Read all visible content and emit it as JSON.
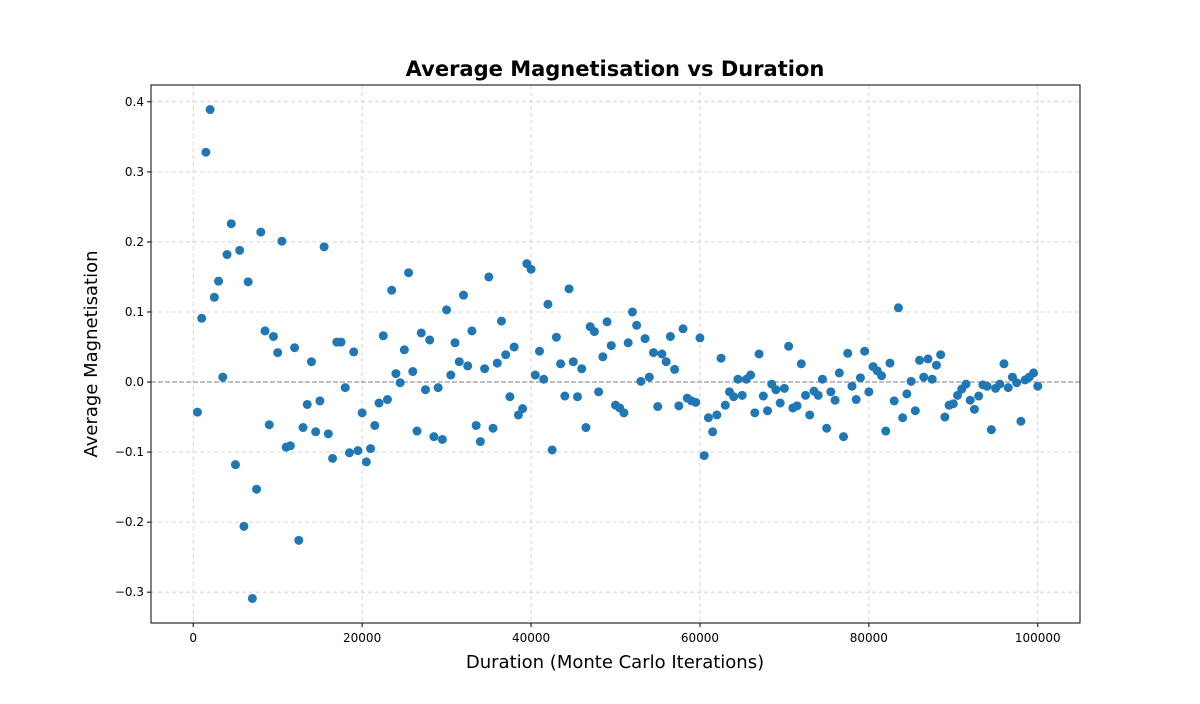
{
  "chart_data": {
    "type": "scatter",
    "title": "Average Magnetisation vs Duration",
    "x_label": "Duration (Monte Carlo Iterations)",
    "y_label": "Average Magnetisation",
    "color": "#1f77b4",
    "grid": true,
    "hlines": [
      0
    ],
    "xlim": [
      -5000,
      105000
    ],
    "ylim": [
      -0.344,
      0.424
    ],
    "xticks": [
      0,
      20000,
      40000,
      60000,
      80000,
      100000
    ],
    "yticks": [
      {
        "value": -0.3,
        "label": "−0.3"
      },
      {
        "value": -0.2,
        "label": "−0.2"
      },
      {
        "value": -0.1,
        "label": "−0.1"
      },
      {
        "value": 0,
        "label": "0.0"
      },
      0.1,
      0.2,
      0.3,
      0.4
    ],
    "x": [
      500,
      1000,
      1500,
      2000,
      2500,
      3000,
      3500,
      4000,
      4500,
      5000,
      5500,
      6000,
      6500,
      7000,
      7500,
      8000,
      8500,
      9000,
      9500,
      10000,
      10500,
      11000,
      11500,
      12000,
      12500,
      13000,
      13500,
      14000,
      14500,
      15000,
      15500,
      16000,
      16500,
      17000,
      17500,
      18000,
      18500,
      19000,
      19500,
      20000,
      20500,
      21000,
      21500,
      22000,
      22500,
      23000,
      23500,
      24000,
      24500,
      25000,
      25500,
      26000,
      26500,
      27000,
      27500,
      28000,
      28500,
      29000,
      29500,
      30000,
      30500,
      31000,
      31500,
      32000,
      32500,
      33000,
      33500,
      34000,
      34500,
      35000,
      35500,
      36000,
      36500,
      37000,
      37500,
      38000,
      38500,
      39000,
      39500,
      40000,
      40500,
      41000,
      41500,
      42000,
      42500,
      43000,
      43500,
      44000,
      44500,
      45000,
      45500,
      46000,
      46500,
      47000,
      47500,
      48000,
      48500,
      49000,
      49500,
      50000,
      50500,
      51000,
      51500,
      52000,
      52500,
      53000,
      53500,
      54000,
      54500,
      55000,
      55500,
      56000,
      56500,
      57000,
      57500,
      58000,
      58500,
      59000,
      59500,
      60000,
      60500,
      61000,
      61500,
      62000,
      62500,
      63000,
      63500,
      64000,
      64500,
      65000,
      65500,
      66000,
      66500,
      67000,
      67500,
      68000,
      68500,
      69000,
      69500,
      70000,
      70500,
      71000,
      71500,
      72000,
      72500,
      73000,
      73500,
      74000,
      74500,
      75000,
      75500,
      76000,
      76500,
      77000,
      77500,
      78000,
      78500,
      79000,
      79500,
      80000,
      80500,
      81000,
      81500,
      82000,
      82500,
      83000,
      83500,
      84000,
      84500,
      85000,
      85500,
      86000,
      86500,
      87000,
      87500,
      88000,
      88500,
      89000,
      89500,
      90000,
      90500,
      91000,
      91500,
      92000,
      92500,
      93000,
      93500,
      94000,
      94500,
      95000,
      95500,
      96000,
      96500,
      97000,
      97500,
      98000,
      98500,
      99000,
      99500,
      100000
    ],
    "values": [
      -0.043,
      0.091,
      0.328,
      0.389,
      0.121,
      0.144,
      0.007,
      0.182,
      0.226,
      -0.118,
      0.188,
      -0.206,
      0.143,
      -0.309,
      -0.153,
      0.214,
      0.073,
      -0.061,
      0.065,
      0.042,
      0.201,
      -0.093,
      -0.091,
      0.049,
      -0.226,
      -0.065,
      -0.032,
      0.029,
      -0.071,
      -0.027,
      0.193,
      -0.074,
      -0.109,
      0.057,
      0.057,
      -0.008,
      -0.101,
      0.043,
      -0.098,
      -0.044,
      -0.114,
      -0.095,
      -0.062,
      -0.03,
      0.066,
      -0.025,
      0.131,
      0.012,
      -0.001,
      0.046,
      0.156,
      0.015,
      -0.07,
      0.07,
      -0.011,
      0.06,
      -0.078,
      -0.008,
      -0.082,
      0.103,
      0.01,
      0.056,
      0.029,
      0.124,
      0.023,
      0.073,
      -0.062,
      -0.085,
      0.019,
      0.15,
      -0.066,
      0.027,
      0.087,
      0.039,
      -0.021,
      0.05,
      -0.047,
      -0.038,
      0.169,
      0.161,
      0.01,
      0.044,
      0.004,
      0.111,
      -0.097,
      0.064,
      0.026,
      -0.02,
      0.133,
      0.029,
      -0.021,
      0.019,
      -0.065,
      0.079,
      0.072,
      -0.014,
      0.036,
      0.086,
      0.052,
      -0.033,
      -0.037,
      -0.044,
      0.056,
      0.1,
      0.081,
      0.001,
      0.062,
      0.007,
      0.042,
      -0.035,
      0.04,
      0.029,
      0.065,
      0.018,
      -0.034,
      0.076,
      -0.023,
      -0.027,
      -0.029,
      0.063,
      -0.105,
      -0.051,
      -0.071,
      -0.047,
      0.034,
      -0.033,
      -0.014,
      -0.021,
      0.004,
      -0.019,
      0.004,
      0.01,
      -0.044,
      0.04,
      -0.02,
      -0.041,
      -0.003,
      -0.011,
      -0.03,
      -0.009,
      0.051,
      -0.037,
      -0.034,
      0.026,
      -0.019,
      -0.047,
      -0.013,
      -0.019,
      0.004,
      -0.066,
      -0.014,
      -0.026,
      0.013,
      -0.078,
      0.041,
      -0.006,
      -0.025,
      0.006,
      0.044,
      -0.014,
      0.022,
      0.016,
      0.009,
      -0.07,
      0.027,
      -0.027,
      0.106,
      -0.051,
      -0.017,
      0.001,
      -0.041,
      0.031,
      0.007,
      0.033,
      0.004,
      0.024,
      0.039,
      -0.05,
      -0.033,
      -0.031,
      -0.019,
      -0.01,
      -0.003,
      -0.026,
      -0.039,
      -0.02,
      -0.004,
      -0.006,
      -0.068,
      -0.009,
      -0.003,
      0.026,
      -0.008,
      0.007,
      -0.001,
      -0.056,
      0.003,
      0.007,
      0.013,
      -0.006
    ]
  }
}
